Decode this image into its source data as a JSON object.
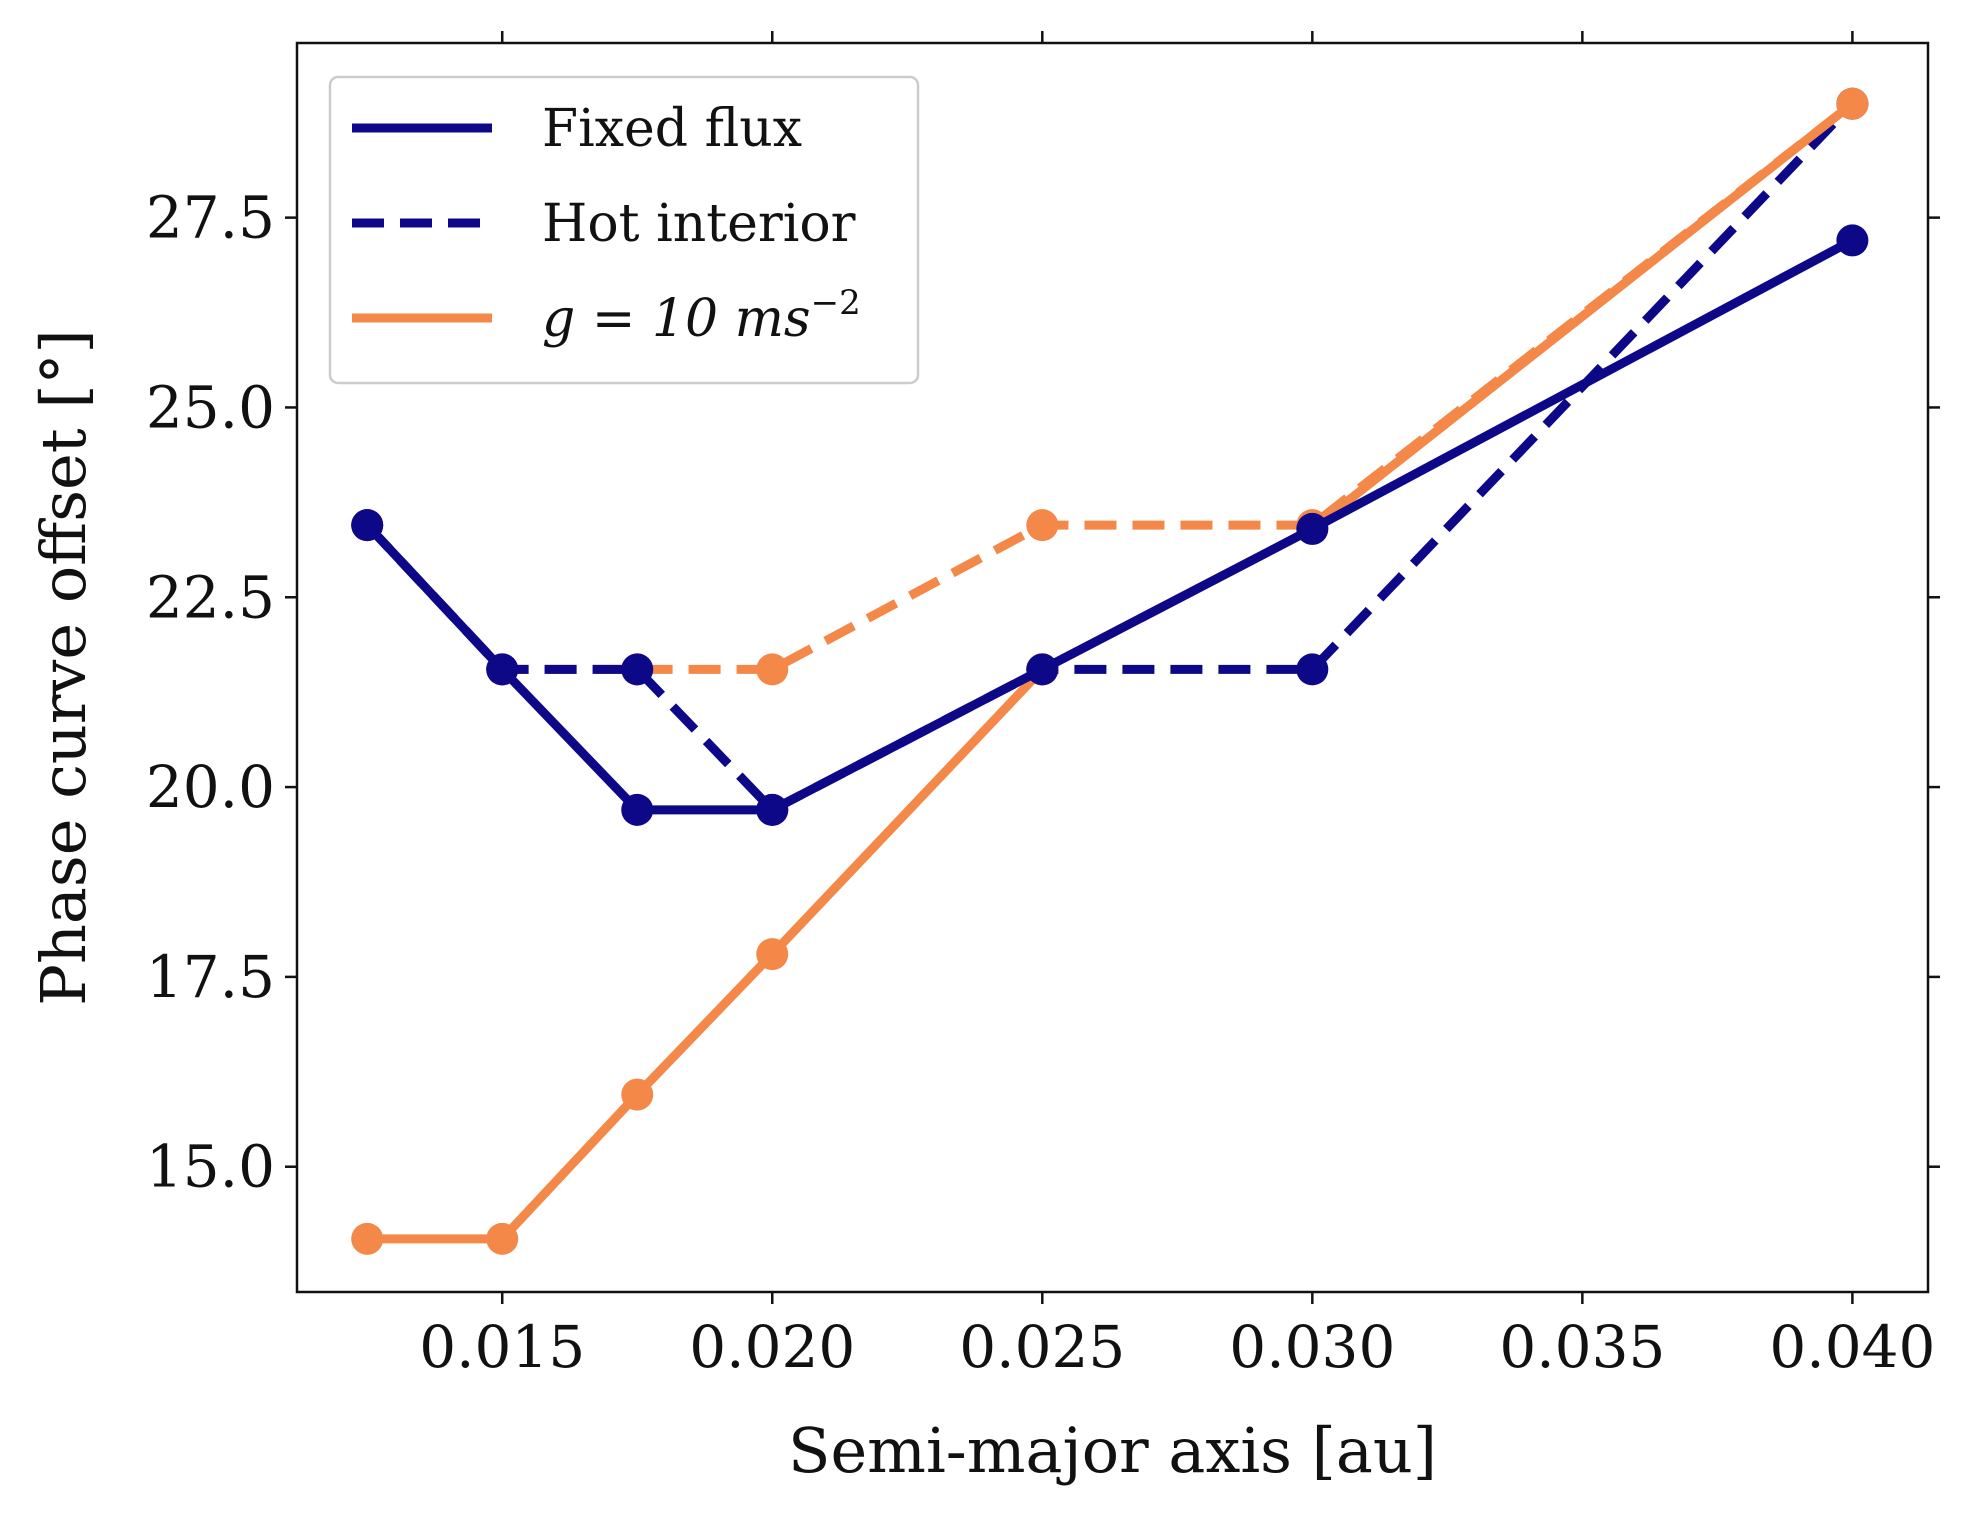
{
  "chart_data": {
    "type": "line",
    "title": "",
    "xlabel": "Semi-major axis [au]",
    "ylabel": "Phase curve offset [°]",
    "xlim": [
      0.0112,
      0.0414
    ],
    "ylim": [
      13.35,
      29.8
    ],
    "xticks": [
      0.015,
      0.02,
      0.025,
      0.03,
      0.035,
      0.04
    ],
    "xtick_labels": [
      "0.015",
      "0.020",
      "0.025",
      "0.030",
      "0.035",
      "0.040"
    ],
    "yticks": [
      15.0,
      17.5,
      20.0,
      22.5,
      25.0,
      27.5
    ],
    "ytick_labels": [
      "15.0",
      "17.5",
      "20.0",
      "22.5",
      "25.0",
      "27.5"
    ],
    "grid": false,
    "legend_position": "top-left",
    "legend": [
      {
        "label": "Fixed flux",
        "color": "#0d0887",
        "style": "solid"
      },
      {
        "label": "Hot interior",
        "color": "#0d0887",
        "style": "dashed"
      },
      {
        "label_main": "g = 10 ms",
        "label_sup": "−2",
        "color": "#f48849",
        "style": "solid"
      }
    ],
    "series": [
      {
        "name": "Fixed flux",
        "color": "#0d0887",
        "style": "solid",
        "x": [
          0.0125,
          0.015,
          0.0175,
          0.02,
          0.025,
          0.03,
          0.04
        ],
        "y": [
          23.45,
          21.55,
          19.7,
          19.7,
          21.55,
          23.4,
          27.2
        ]
      },
      {
        "name": "Hot interior",
        "color": "#0d0887",
        "style": "dashed",
        "x": [
          0.0125,
          0.015,
          0.0175,
          0.02,
          0.025,
          0.03,
          0.04
        ],
        "y": [
          23.45,
          21.55,
          21.55,
          19.7,
          21.55,
          21.55,
          29.0
        ]
      },
      {
        "name": "g = 10 ms−2",
        "color": "#f48849",
        "style": "solid",
        "x": [
          0.0125,
          0.015,
          0.0175,
          0.02,
          0.025,
          0.03,
          0.04
        ],
        "y": [
          14.05,
          14.05,
          15.95,
          17.8,
          21.55,
          23.4,
          29.0
        ]
      },
      {
        "name": "",
        "color": "#f48849",
        "style": "dashed",
        "x": [
          0.0125,
          0.015,
          0.0175,
          0.02,
          0.025,
          0.03,
          0.04
        ],
        "y": [
          23.45,
          21.55,
          21.55,
          21.55,
          23.45,
          23.45,
          29.0
        ]
      }
    ]
  }
}
